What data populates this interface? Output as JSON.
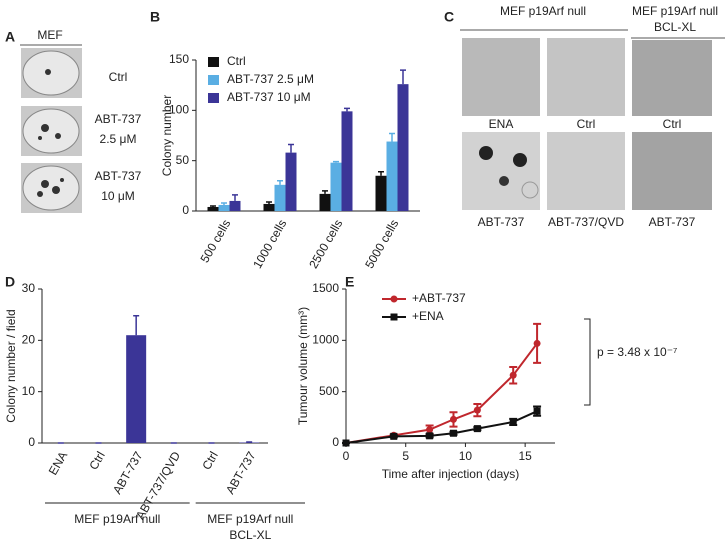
{
  "panel_a": {
    "letter": "A",
    "header": "MEF",
    "labels": [
      [
        "Ctrl"
      ],
      [
        "ABT-737",
        "2.5 μM"
      ],
      [
        "ABT-737",
        "10 μM"
      ]
    ]
  },
  "panel_c": {
    "letter": "C",
    "group_labels": [
      [
        "MEF p19Arf null"
      ],
      [
        "MEF p19Arf null",
        "BCL-XL"
      ]
    ],
    "top_labels": [
      "ENA",
      "Ctrl",
      "Ctrl"
    ],
    "bottom_labels": [
      "ABT-737",
      "ABT-737/QVD",
      "ABT-737"
    ]
  },
  "chart_data": [
    {
      "type": "bar",
      "panel": "B",
      "ylabel": "Colony number",
      "categories": [
        "500 cells",
        "1000 cells",
        "2500 cells",
        "5000 cells"
      ],
      "series": [
        {
          "name": "Ctrl",
          "color": "#111111",
          "values": [
            4,
            7,
            17,
            35
          ],
          "errors": [
            1,
            2,
            3,
            4
          ]
        },
        {
          "name": "ABT-737 2.5 μM",
          "color": "#5aaee3",
          "values": [
            6,
            26,
            48,
            69
          ],
          "errors": [
            2,
            4,
            1,
            8
          ]
        },
        {
          "name": "ABT-737 10 μM",
          "color": "#3b3597",
          "values": [
            10,
            58,
            99,
            126
          ],
          "errors": [
            6,
            8,
            3,
            14
          ]
        }
      ],
      "ylim": [
        0,
        150
      ],
      "yticks": [
        0,
        50,
        100,
        150
      ],
      "legend": "upper-left"
    },
    {
      "type": "bar",
      "panel": "D",
      "ylabel": "Colony number / field",
      "categories": [
        "ENA",
        "Ctrl",
        "ABT-737",
        "ABT-737/QVD",
        "Ctrl",
        "ABT-737"
      ],
      "series": [
        {
          "color": "#3b3597",
          "values": [
            0,
            0,
            21,
            0,
            0,
            0.1
          ],
          "errors": [
            0,
            0,
            3.8,
            0,
            0,
            0.1
          ]
        }
      ],
      "group_labels": [
        [
          "MEF p19Arf null"
        ],
        [
          "MEF p19Arf null",
          "BCL-XL"
        ]
      ],
      "ylim": [
        0,
        30
      ],
      "yticks": [
        0,
        10,
        20,
        30
      ]
    },
    {
      "type": "line",
      "panel": "E",
      "xlabel": "Time after injection (days)",
      "ylabel": "Tumour volume (mm³)",
      "x": [
        0,
        4,
        7,
        9,
        11,
        14,
        16
      ],
      "series": [
        {
          "name": "+ABT-737",
          "color": "#c0272d",
          "marker": "circle",
          "values": [
            0,
            75,
            130,
            230,
            320,
            660,
            970
          ],
          "errors": [
            0,
            10,
            40,
            70,
            60,
            80,
            190
          ]
        },
        {
          "name": "+ENA",
          "color": "#111111",
          "marker": "square",
          "values": [
            0,
            65,
            70,
            95,
            140,
            205,
            310
          ],
          "errors": [
            0,
            10,
            15,
            15,
            15,
            30,
            45
          ]
        }
      ],
      "annotation": "p = 3.48 x 10⁻⁷",
      "xlim": [
        0,
        17.5
      ],
      "xticks": [
        0,
        5,
        10,
        15
      ],
      "ylim": [
        0,
        1500
      ],
      "yticks": [
        0,
        500,
        1000,
        1500
      ],
      "legend": "upper-left"
    }
  ]
}
